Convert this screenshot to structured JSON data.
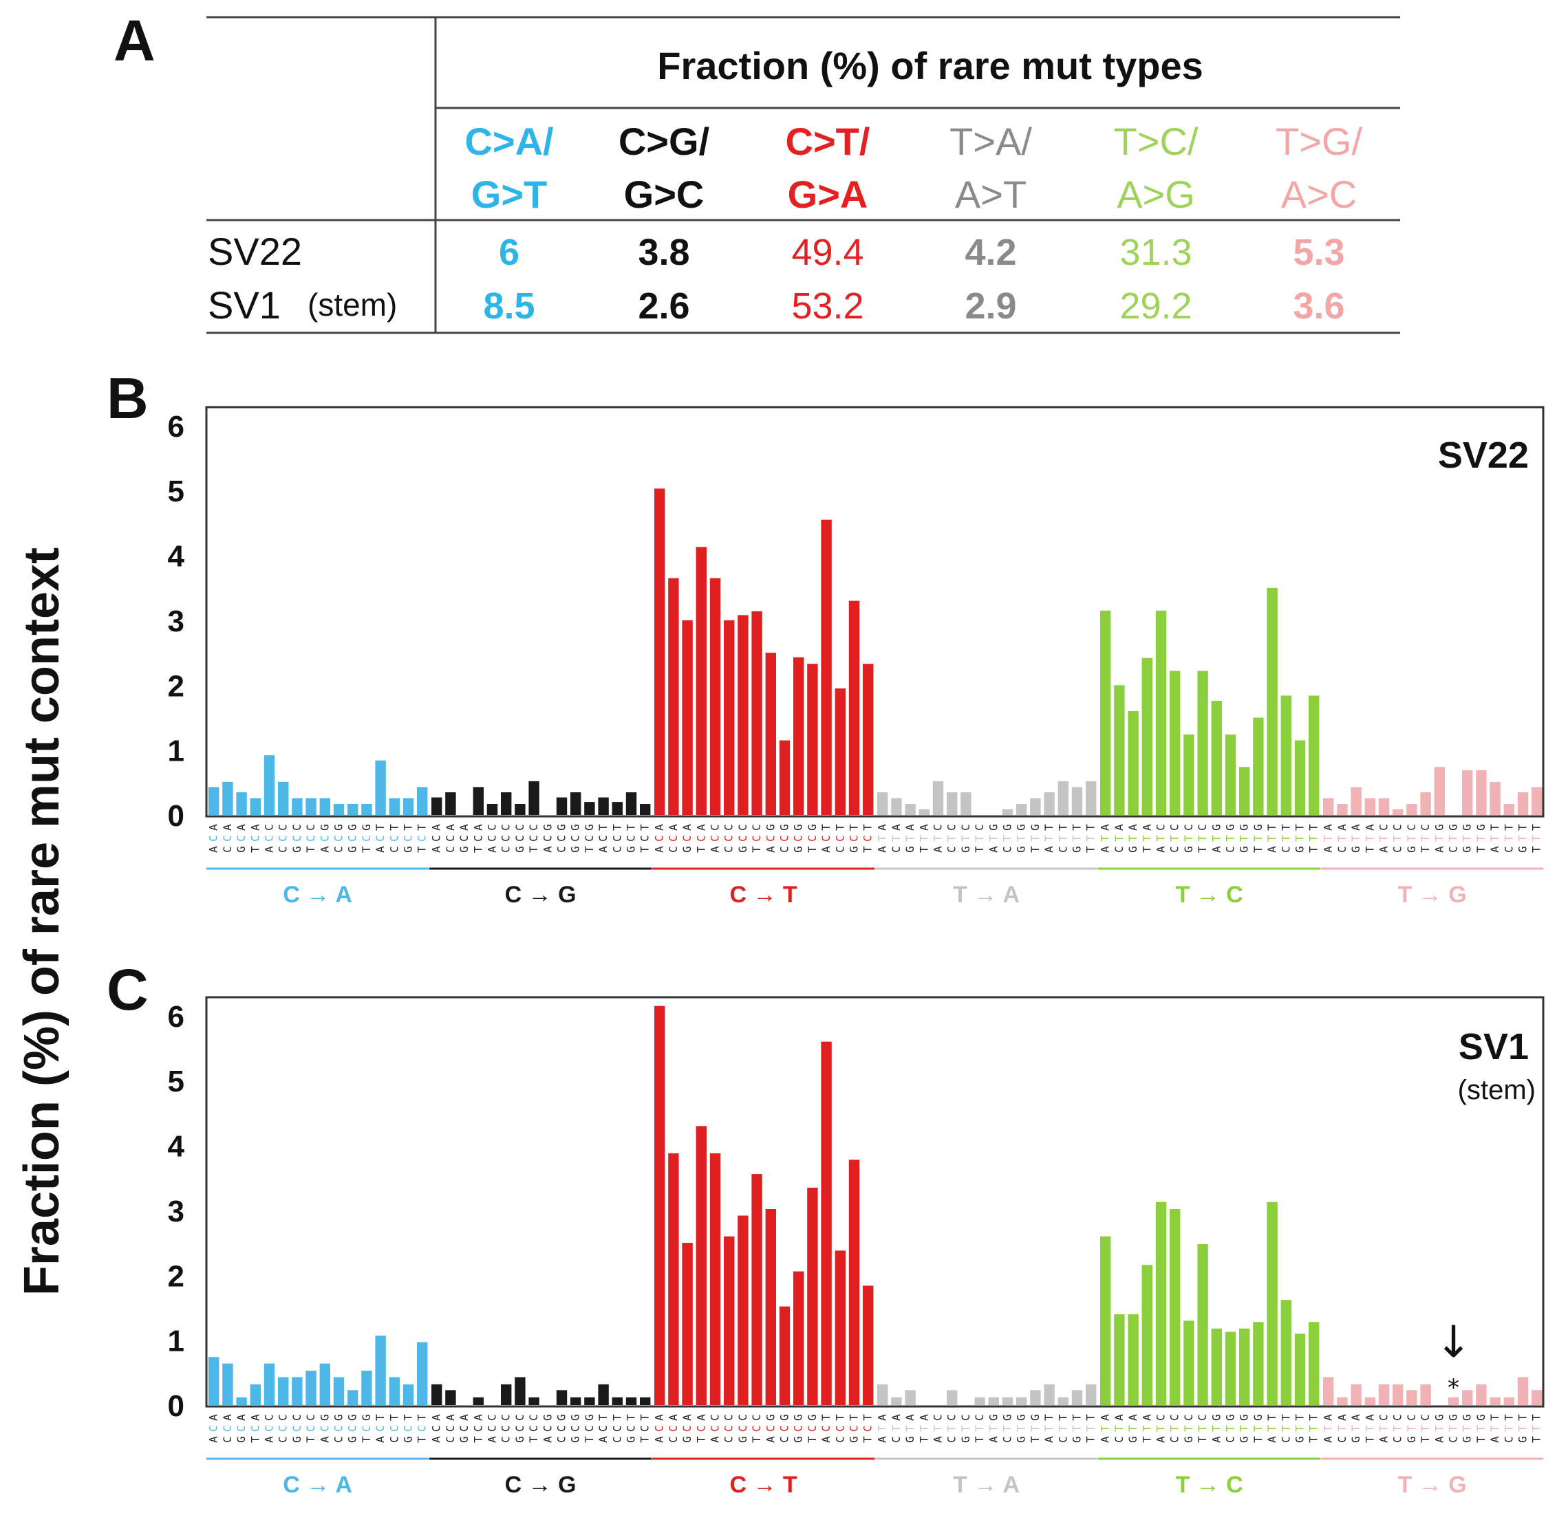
{
  "colors": {
    "C>A": "#4db8e8",
    "C>G": "#1a1a1a",
    "C>T": "#e02020",
    "T>A": "#c4c4c4",
    "T>C": "#8ccf3c",
    "T>G": "#f0b2b4"
  },
  "table_colors": {
    "C>A": "#2db4e8",
    "C>G": "#111111",
    "C>T": "#e52020",
    "T>A": "#8a8a8a",
    "T>C": "#9ed35a",
    "T>G": "#f4a6a6"
  },
  "panel_labels": {
    "a": "A",
    "b": "B",
    "c": "C"
  },
  "y_axis_label": "Fraction (%) of rare mut context",
  "table": {
    "header": "Fraction (%) of rare mut types",
    "types": [
      {
        "key": "C>A",
        "line1": "C>A/",
        "line2": "G>T",
        "bold": true
      },
      {
        "key": "C>G",
        "line1": "C>G/",
        "line2": "G>C",
        "bold": true
      },
      {
        "key": "C>T",
        "line1": "C>T/",
        "line2": "G>A",
        "bold": true
      },
      {
        "key": "T>A",
        "line1": "T>A/",
        "line2": "A>T",
        "bold": false
      },
      {
        "key": "T>C",
        "line1": "T>C/",
        "line2": "A>G",
        "bold": false
      },
      {
        "key": "T>G",
        "line1": "T>G/",
        "line2": "A>C",
        "bold": false
      }
    ],
    "rows": [
      {
        "name": "SV22",
        "note": "",
        "values": [
          "6",
          "3.8",
          "49.4",
          "4.2",
          "31.3",
          "5.3"
        ]
      },
      {
        "name": "SV1",
        "note": "(stem)",
        "values": [
          "8.5",
          "2.6",
          "53.2",
          "2.9",
          "29.2",
          "3.6"
        ]
      }
    ],
    "value_bold": [
      true,
      true,
      false,
      true,
      false,
      true
    ]
  },
  "chart_data": [
    {
      "type": "bar",
      "title": "SV22",
      "subtitle": "",
      "ylabel": "Fraction (%) of rare mut context",
      "ylim": [
        0,
        6.2
      ],
      "yticks": [
        0,
        1,
        2,
        3,
        4,
        5,
        6
      ],
      "groups": [
        {
          "label": "C → A",
          "key": "C>A",
          "ref": "C",
          "values": [
            0.43,
            0.51,
            0.35,
            0.26,
            0.92,
            0.51,
            0.26,
            0.26,
            0.26,
            0.17,
            0.17,
            0.17,
            0.84,
            0.26,
            0.26,
            0.43
          ]
        },
        {
          "label": "C → G",
          "key": "C>G",
          "ref": "C",
          "values": [
            0.27,
            0.35,
            0.0,
            0.43,
            0.17,
            0.35,
            0.17,
            0.52,
            0.0,
            0.27,
            0.35,
            0.2,
            0.27,
            0.2,
            0.35,
            0.17
          ]
        },
        {
          "label": "C → T",
          "key": "C>T",
          "ref": "C",
          "values": [
            5.03,
            3.65,
            3.0,
            4.13,
            3.65,
            3.0,
            3.08,
            3.14,
            2.5,
            1.15,
            2.43,
            2.33,
            4.55,
            1.95,
            3.3,
            2.33
          ]
        },
        {
          "label": "T → A",
          "key": "T>A",
          "ref": "T",
          "values": [
            0.35,
            0.26,
            0.17,
            0.09,
            0.52,
            0.35,
            0.35,
            0.0,
            0.0,
            0.09,
            0.17,
            0.26,
            0.35,
            0.52,
            0.43,
            0.52
          ]
        },
        {
          "label": "T → C",
          "key": "T>C",
          "ref": "T",
          "values": [
            3.15,
            2.0,
            1.6,
            2.42,
            3.15,
            2.22,
            1.24,
            2.22,
            1.76,
            1.24,
            0.74,
            1.5,
            3.5,
            1.84,
            1.15,
            1.84
          ]
        },
        {
          "label": "T → G",
          "key": "T>G",
          "ref": "T",
          "values": [
            0.26,
            0.17,
            0.43,
            0.26,
            0.26,
            0.09,
            0.17,
            0.35,
            0.74,
            0.0,
            0.69,
            0.69,
            0.51,
            0.17,
            0.35,
            0.43
          ]
        }
      ]
    },
    {
      "type": "bar",
      "title": "SV1",
      "subtitle": "(stem)",
      "ylabel": "Fraction (%) of rare mut context",
      "ylim": [
        0,
        6.2
      ],
      "yticks": [
        0,
        1,
        2,
        3,
        4,
        5,
        6
      ],
      "groups": [
        {
          "label": "C → A",
          "key": "C>A",
          "ref": "C",
          "values": [
            0.74,
            0.64,
            0.12,
            0.32,
            0.64,
            0.43,
            0.43,
            0.53,
            0.64,
            0.43,
            0.23,
            0.53,
            1.07,
            0.43,
            0.32,
            0.97
          ]
        },
        {
          "label": "C → G",
          "key": "C>G",
          "ref": "C",
          "values": [
            0.32,
            0.23,
            0.0,
            0.12,
            0.0,
            0.32,
            0.43,
            0.12,
            0.0,
            0.23,
            0.12,
            0.12,
            0.32,
            0.12,
            0.12,
            0.12
          ]
        },
        {
          "label": "C → T",
          "key": "C>T",
          "ref": "C",
          "values": [
            6.15,
            3.88,
            2.5,
            4.3,
            3.88,
            2.6,
            2.92,
            3.56,
            3.02,
            1.52,
            2.06,
            3.35,
            5.6,
            2.38,
            3.78,
            1.84
          ]
        },
        {
          "label": "T → A",
          "key": "T>A",
          "ref": "T",
          "values": [
            0.32,
            0.12,
            0.23,
            0.0,
            0.0,
            0.23,
            0.0,
            0.12,
            0.12,
            0.12,
            0.12,
            0.23,
            0.32,
            0.12,
            0.23,
            0.32
          ]
        },
        {
          "label": "T → C",
          "key": "T>C",
          "ref": "T",
          "values": [
            2.6,
            1.4,
            1.4,
            2.16,
            3.13,
            3.02,
            1.3,
            2.48,
            1.18,
            1.13,
            1.18,
            1.28,
            3.13,
            1.62,
            1.1,
            1.28
          ]
        },
        {
          "label": "T → G",
          "key": "T>G",
          "ref": "T",
          "values": [
            0.43,
            0.12,
            0.32,
            0.12,
            0.32,
            0.32,
            0.23,
            0.32,
            0.0,
            0.12,
            0.23,
            0.32,
            0.12,
            0.12,
            0.43,
            0.23
          ]
        }
      ],
      "annotation": {
        "group": 5,
        "index": 9,
        "marker": "*",
        "arrow": "↓"
      }
    }
  ],
  "context_5prime": [
    "A",
    "A",
    "A",
    "A",
    "C",
    "C",
    "C",
    "C",
    "G",
    "G",
    "G",
    "G",
    "T",
    "T",
    "T",
    "T"
  ],
  "context_3prime": [
    "A",
    "C",
    "G",
    "T",
    "A",
    "C",
    "G",
    "T",
    "A",
    "C",
    "G",
    "T",
    "A",
    "C",
    "G",
    "T"
  ]
}
